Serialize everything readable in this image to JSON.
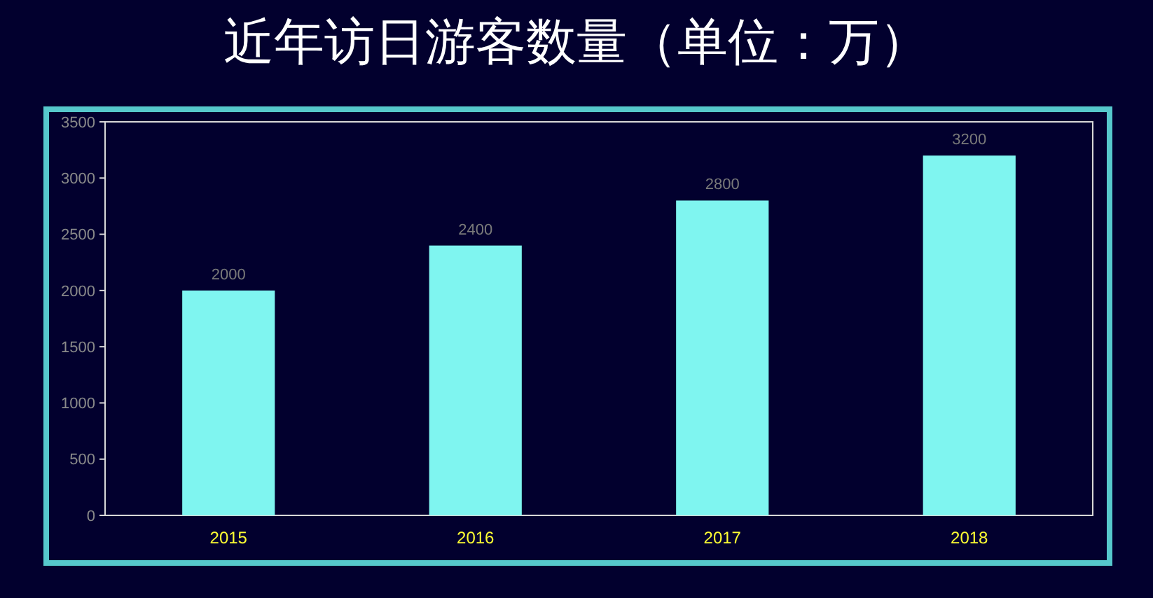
{
  "chart_data": {
    "type": "bar",
    "title": "近年访日游客数量（单位：万）",
    "categories": [
      "2015",
      "2016",
      "2017",
      "2018"
    ],
    "values": [
      2000,
      2400,
      2800,
      3200
    ],
    "color": "#7ff5f0",
    "ylim": [
      0,
      3500
    ],
    "yticks": [
      0,
      500,
      1000,
      1500,
      2000,
      2500,
      3000,
      3500
    ],
    "grid": false,
    "data_labels": true
  }
}
